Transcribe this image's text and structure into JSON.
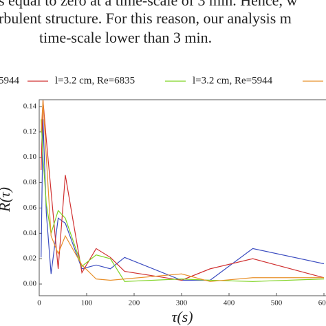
{
  "paragraph": [
    "s equal to zero at a time-scale of 3 min. Hence, w",
    "rbulent structure. For this reason, our analysis m",
    "time-scale lower than 3 min."
  ],
  "chart_data": {
    "type": "line",
    "xlabel": "τ(s)",
    "ylabel": "R(τ)",
    "x": [
      4,
      8,
      15,
      25,
      40,
      55,
      90,
      120,
      150,
      180,
      300,
      360,
      450,
      600
    ],
    "series": [
      {
        "name": "5944",
        "color": "#3b4cc0",
        "values": [
          0.021,
          0.13,
          0.056,
          0.008,
          0.052,
          0.048,
          0.012,
          0.015,
          0.012,
          0.021,
          0.003,
          0.003,
          0.028,
          0.016
        ]
      },
      {
        "name": "l=3.2 cm, Re=6835",
        "color": "#d03030",
        "values": [
          0.09,
          0.145,
          0.114,
          0.073,
          0.012,
          0.086,
          0.009,
          0.028,
          0.021,
          0.01,
          0.003,
          0.012,
          0.02,
          0.005
        ]
      },
      {
        "name": "l=3.2 cm, Re=5944",
        "color": "#7ed321",
        "values": [
          0.13,
          0.1,
          0.063,
          0.04,
          0.058,
          0.052,
          0.014,
          0.023,
          0.02,
          0.002,
          0.004,
          0.003,
          0.002,
          0.004
        ]
      },
      {
        "color": "#e8902a",
        "values": [
          0.12,
          0.145,
          0.1,
          0.038,
          0.024,
          0.038,
          0.015,
          0.004,
          0.003,
          0.004,
          0.008,
          0.002,
          0.005,
          0.005
        ]
      }
    ],
    "xlim": [
      0,
      600
    ],
    "ylim": [
      0,
      0.14
    ],
    "xticks": [
      0,
      100,
      200,
      300,
      400,
      500,
      600
    ],
    "yticks": [
      {
        "value": 0,
        "label": "0.00"
      },
      0.02,
      0.04,
      0.06,
      0.08,
      {
        "value": 0.1,
        "label": "0.10"
      },
      0.12,
      0.14
    ]
  }
}
